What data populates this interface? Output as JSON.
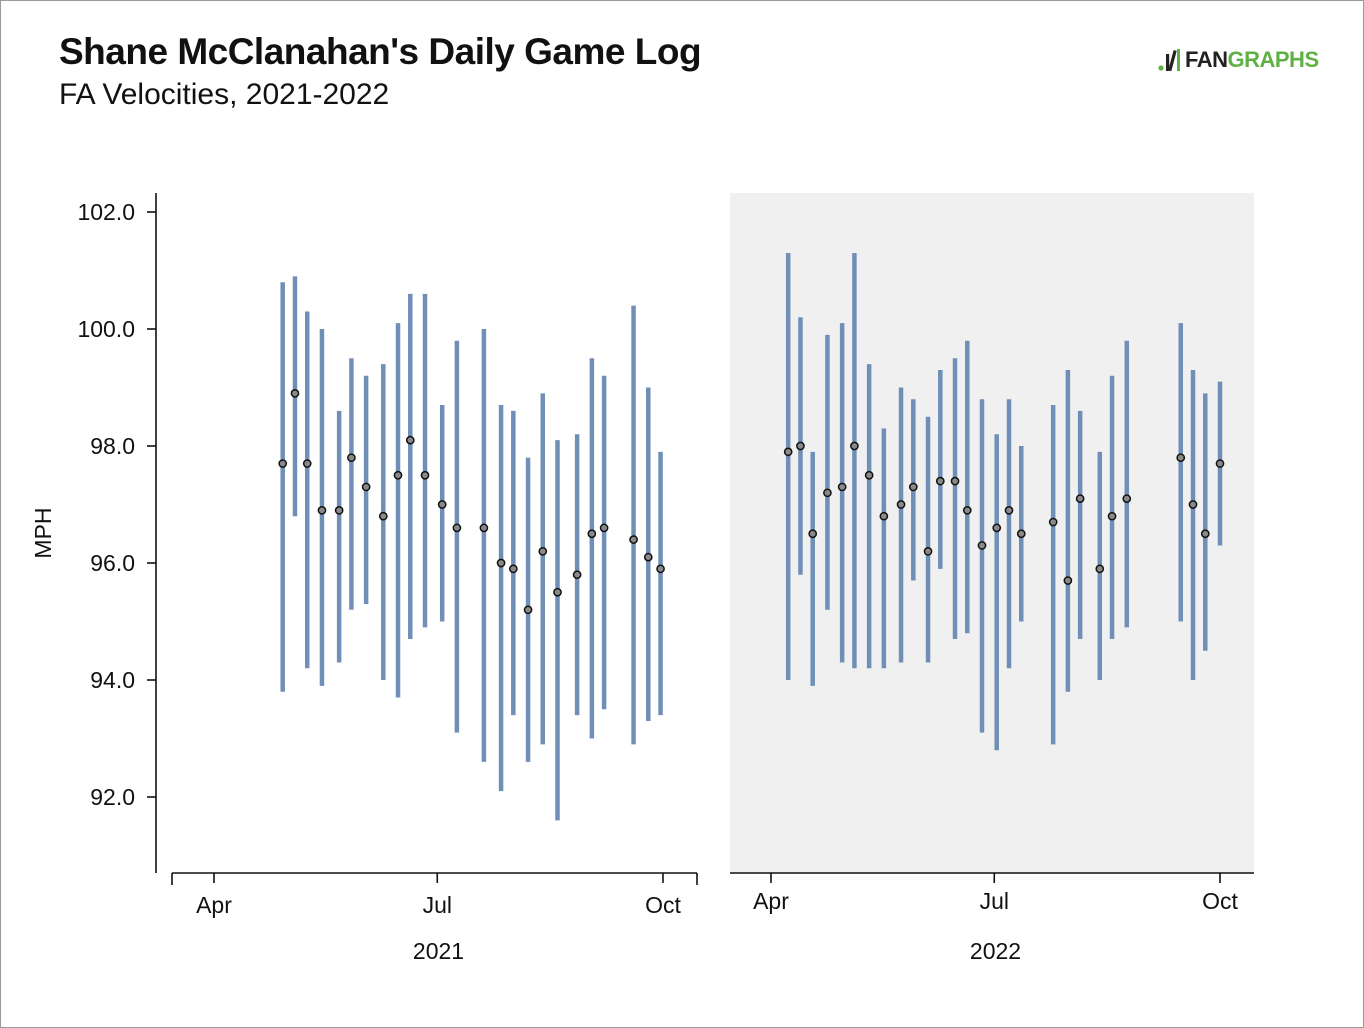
{
  "header": {
    "title": "Shane McClanahan's Daily Game Log",
    "subtitle": "FA Velocities, 2021-2022",
    "logo_fan": "FAN",
    "logo_graphs": "GRAPHS"
  },
  "colors": {
    "bar": "#6f8fb7",
    "point_fill": "#8a8a8a",
    "point_stroke": "#111111",
    "panel_highlight": "#f0f0f0",
    "logo_green": "#5fb146"
  },
  "chart_data": {
    "type": "scatter",
    "title": "Shane McClanahan's Daily Game Log",
    "subtitle": "FA Velocities, 2021-2022",
    "ylabel": "MPH",
    "ylim": [
      90.7,
      102.3
    ],
    "y_ticks": [
      "102.0",
      "100.0",
      "98.0",
      "96.0",
      "94.0",
      "92.0"
    ],
    "y_tick_values": [
      102.0,
      100.0,
      98.0,
      96.0,
      94.0,
      92.0
    ],
    "x_ticks": [
      "Apr",
      "Jul",
      "Oct"
    ],
    "panels": [
      {
        "year": "2021",
        "x_tick_days": [
          0,
          91,
          183
        ],
        "games": [
          {
            "day": 28,
            "mean": 97.7,
            "min": 93.8,
            "max": 100.8
          },
          {
            "day": 33,
            "mean": 98.9,
            "min": 96.8,
            "max": 100.9
          },
          {
            "day": 38,
            "mean": 97.7,
            "min": 94.2,
            "max": 100.3
          },
          {
            "day": 44,
            "mean": 96.9,
            "min": 93.9,
            "max": 100.0
          },
          {
            "day": 51,
            "mean": 96.9,
            "min": 94.3,
            "max": 98.6
          },
          {
            "day": 56,
            "mean": 97.8,
            "min": 95.2,
            "max": 99.5
          },
          {
            "day": 62,
            "mean": 97.3,
            "min": 95.3,
            "max": 99.2
          },
          {
            "day": 69,
            "mean": 96.8,
            "min": 94.0,
            "max": 99.4
          },
          {
            "day": 75,
            "mean": 97.5,
            "min": 93.7,
            "max": 100.1
          },
          {
            "day": 80,
            "mean": 98.1,
            "min": 94.7,
            "max": 100.6
          },
          {
            "day": 86,
            "mean": 97.5,
            "min": 94.9,
            "max": 100.6
          },
          {
            "day": 93,
            "mean": 97.0,
            "min": 95.0,
            "max": 98.7
          },
          {
            "day": 99,
            "mean": 96.6,
            "min": 93.1,
            "max": 99.8
          },
          {
            "day": 110,
            "mean": 96.6,
            "min": 92.6,
            "max": 100.0
          },
          {
            "day": 117,
            "mean": 96.0,
            "min": 92.1,
            "max": 98.7
          },
          {
            "day": 122,
            "mean": 95.9,
            "min": 93.4,
            "max": 98.6
          },
          {
            "day": 128,
            "mean": 95.2,
            "min": 92.6,
            "max": 97.8
          },
          {
            "day": 134,
            "mean": 96.2,
            "min": 92.9,
            "max": 98.9
          },
          {
            "day": 140,
            "mean": 95.5,
            "min": 91.6,
            "max": 98.1
          },
          {
            "day": 148,
            "mean": 95.8,
            "min": 93.4,
            "max": 98.2
          },
          {
            "day": 154,
            "mean": 96.5,
            "min": 93.0,
            "max": 99.5
          },
          {
            "day": 159,
            "mean": 96.6,
            "min": 93.5,
            "max": 99.2
          },
          {
            "day": 171,
            "mean": 96.4,
            "min": 92.9,
            "max": 100.4
          },
          {
            "day": 177,
            "mean": 96.1,
            "min": 93.3,
            "max": 99.0
          },
          {
            "day": 182,
            "mean": 95.9,
            "min": 93.4,
            "max": 97.9
          }
        ]
      },
      {
        "year": "2022",
        "x_tick_days": [
          0,
          91,
          183
        ],
        "games": [
          {
            "day": 7,
            "mean": 97.9,
            "min": 94.0,
            "max": 101.3
          },
          {
            "day": 12,
            "mean": 98.0,
            "min": 95.8,
            "max": 100.2
          },
          {
            "day": 17,
            "mean": 96.5,
            "min": 93.9,
            "max": 97.9
          },
          {
            "day": 23,
            "mean": 97.2,
            "min": 95.2,
            "max": 99.9
          },
          {
            "day": 29,
            "mean": 97.3,
            "min": 94.3,
            "max": 100.1
          },
          {
            "day": 34,
            "mean": 98.0,
            "min": 94.2,
            "max": 101.3
          },
          {
            "day": 40,
            "mean": 97.5,
            "min": 94.2,
            "max": 99.4
          },
          {
            "day": 46,
            "mean": 96.8,
            "min": 94.2,
            "max": 98.3
          },
          {
            "day": 53,
            "mean": 97.0,
            "min": 94.3,
            "max": 99.0
          },
          {
            "day": 58,
            "mean": 97.3,
            "min": 95.7,
            "max": 98.8
          },
          {
            "day": 64,
            "mean": 96.2,
            "min": 94.3,
            "max": 98.5
          },
          {
            "day": 69,
            "mean": 97.4,
            "min": 95.9,
            "max": 99.3
          },
          {
            "day": 75,
            "mean": 97.4,
            "min": 94.7,
            "max": 99.5
          },
          {
            "day": 80,
            "mean": 96.9,
            "min": 94.8,
            "max": 99.8
          },
          {
            "day": 86,
            "mean": 96.3,
            "min": 93.1,
            "max": 98.8
          },
          {
            "day": 92,
            "mean": 96.6,
            "min": 92.8,
            "max": 98.2
          },
          {
            "day": 97,
            "mean": 96.9,
            "min": 94.2,
            "max": 98.8
          },
          {
            "day": 102,
            "mean": 96.5,
            "min": 95.0,
            "max": 98.0
          },
          {
            "day": 115,
            "mean": 96.7,
            "min": 92.9,
            "max": 98.7
          },
          {
            "day": 121,
            "mean": 95.7,
            "min": 93.8,
            "max": 99.3
          },
          {
            "day": 126,
            "mean": 97.1,
            "min": 94.7,
            "max": 98.6
          },
          {
            "day": 134,
            "mean": 95.9,
            "min": 94.0,
            "max": 97.9
          },
          {
            "day": 139,
            "mean": 96.8,
            "min": 94.7,
            "max": 99.2
          },
          {
            "day": 145,
            "mean": 97.1,
            "min": 94.9,
            "max": 99.8
          },
          {
            "day": 167,
            "mean": 97.8,
            "min": 95.0,
            "max": 100.1
          },
          {
            "day": 172,
            "mean": 97.0,
            "min": 94.0,
            "max": 99.3
          },
          {
            "day": 177,
            "mean": 96.5,
            "min": 94.5,
            "max": 98.9
          },
          {
            "day": 183,
            "mean": 97.7,
            "min": 96.3,
            "max": 99.1
          }
        ]
      }
    ]
  }
}
